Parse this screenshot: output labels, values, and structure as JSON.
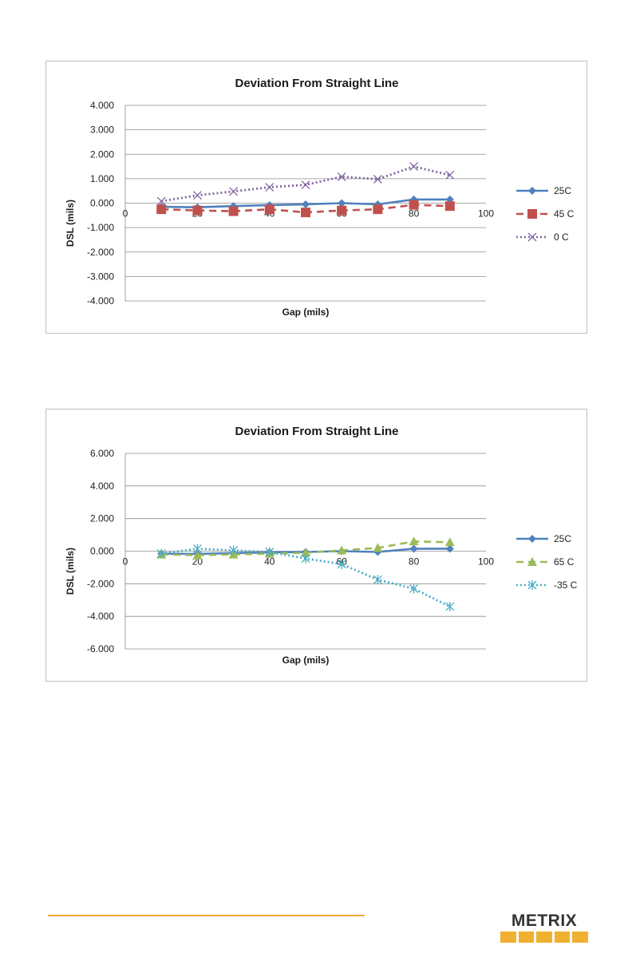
{
  "chart_data": [
    {
      "type": "line",
      "title": "Deviation From Straight Line",
      "xlabel": "Gap (mils)",
      "ylabel": "DSL (mils)",
      "xlim": [
        0,
        100
      ],
      "xticks": [
        0,
        20,
        40,
        60,
        80,
        100
      ],
      "ylim": [
        -4,
        4
      ],
      "yticks": [
        -4,
        -3,
        -2,
        -1,
        0,
        1,
        2,
        3,
        4
      ],
      "ytick_labels": [
        "-4.000",
        "-3.000",
        "-2.000",
        "-1.000",
        "0.000",
        "1.000",
        "2.000",
        "3.000",
        "4.000"
      ],
      "grid": "horizontal",
      "legend_position": "right",
      "x": [
        10,
        20,
        30,
        40,
        50,
        60,
        70,
        80,
        90
      ],
      "series": [
        {
          "name": "25C",
          "values": [
            -0.15,
            -0.17,
            -0.12,
            -0.08,
            -0.05,
            0.0,
            -0.05,
            0.15,
            0.15
          ],
          "color": "#4f81bd",
          "dash": "solid",
          "marker": "diamond"
        },
        {
          "name": "45 C",
          "values": [
            -0.25,
            -0.3,
            -0.33,
            -0.25,
            -0.38,
            -0.3,
            -0.25,
            -0.07,
            -0.12
          ],
          "color": "#c0504d",
          "dash": "dashed",
          "marker": "square"
        },
        {
          "name": "0 C",
          "values": [
            0.08,
            0.32,
            0.48,
            0.65,
            0.75,
            1.08,
            0.98,
            1.5,
            1.15
          ],
          "color": "#8064a2",
          "dash": "dotted",
          "marker": "x"
        }
      ]
    },
    {
      "type": "line",
      "title": "Deviation From Straight Line",
      "xlabel": "Gap (mils)",
      "ylabel": "DSL (mils)",
      "xlim": [
        0,
        100
      ],
      "xticks": [
        0,
        20,
        40,
        60,
        80,
        100
      ],
      "ylim": [
        -6,
        6
      ],
      "yticks": [
        -6,
        -4,
        -2,
        0,
        2,
        4,
        6
      ],
      "ytick_labels": [
        "-6.000",
        "-4.000",
        "-2.000",
        "0.000",
        "2.000",
        "4.000",
        "6.000"
      ],
      "grid": "horizontal",
      "legend_position": "right",
      "x": [
        10,
        20,
        30,
        40,
        50,
        60,
        70,
        80,
        90
      ],
      "series": [
        {
          "name": "25C",
          "values": [
            -0.15,
            -0.17,
            -0.12,
            -0.08,
            -0.05,
            0.0,
            -0.05,
            0.15,
            0.15
          ],
          "color": "#4f81bd",
          "dash": "solid",
          "marker": "diamond"
        },
        {
          "name": "65 C",
          "values": [
            -0.2,
            -0.25,
            -0.2,
            -0.15,
            -0.1,
            0.05,
            0.2,
            0.6,
            0.55
          ],
          "color": "#9bbb59",
          "dash": "dashed",
          "marker": "triangle"
        },
        {
          "name": "-35 C",
          "values": [
            -0.15,
            0.15,
            0.05,
            -0.05,
            -0.45,
            -0.8,
            -1.75,
            -2.3,
            -3.4
          ],
          "color": "#4bacc6",
          "dash": "dotted",
          "marker": "asterisk"
        }
      ]
    }
  ],
  "footer": {
    "logo_text": "METRIX",
    "accent_color": "#f0a830"
  }
}
